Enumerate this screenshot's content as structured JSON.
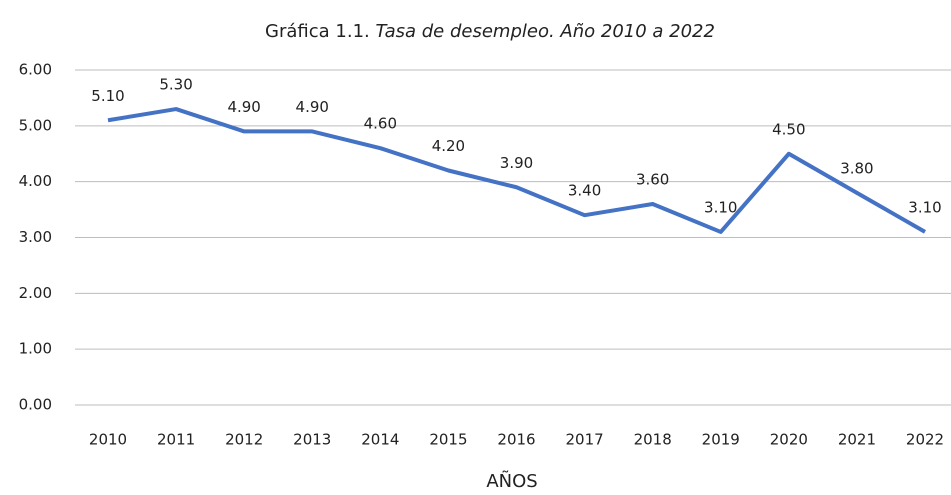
{
  "chart_data": {
    "type": "line",
    "title_prefix": "Gráfica 1.1.",
    "title": "Tasa de desempleo. Año 2010 a 2022",
    "x_label": "AÑOS",
    "categories": [
      "2010",
      "2011",
      "2012",
      "2013",
      "2014",
      "2015",
      "2016",
      "2017",
      "2018",
      "2019",
      "2020",
      "2021",
      "2022"
    ],
    "values": [
      5.1,
      5.3,
      4.9,
      4.9,
      4.6,
      4.2,
      3.9,
      3.4,
      3.6,
      3.1,
      4.5,
      3.8,
      3.1
    ],
    "value_labels": [
      "5.10",
      "5.30",
      "4.90",
      "4.90",
      "4.60",
      "4.20",
      "3.90",
      "3.40",
      "3.60",
      "3.10",
      "4.50",
      "3.80",
      "3.10"
    ],
    "color": "#4472c4",
    "ylim": [
      0,
      6
    ],
    "yticks": [
      {
        "value": 0,
        "label": "0.00"
      },
      {
        "value": 1,
        "label": "1.00"
      },
      {
        "value": 2,
        "label": "2.00"
      },
      {
        "value": 3,
        "label": "3.00"
      },
      {
        "value": 4,
        "label": "4.00"
      },
      {
        "value": 5,
        "label": "5.00"
      },
      {
        "value": 6,
        "label": "6.00"
      }
    ],
    "grid": true
  }
}
